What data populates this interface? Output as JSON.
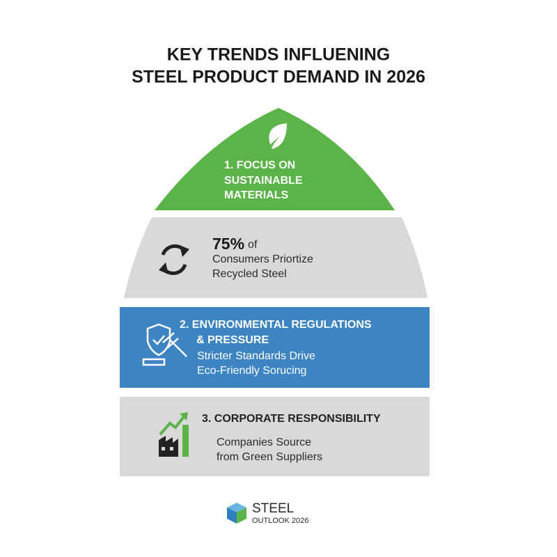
{
  "header": {
    "title": [
      "KEY TRENDS INFLUENING",
      "STEEL PRODUCT DEMAND IN 2026"
    ]
  },
  "tiers": [
    {
      "heading": [
        "1. FOCUS ON",
        "SUSTAINABLE",
        "MATERIALS"
      ]
    },
    {
      "stat": "75%",
      "stat_suffix": "of",
      "text": [
        "Consumers Priortize",
        "Recycled Steel"
      ]
    },
    {
      "heading": [
        "2.  ENVIRONMENTAL REGULATIONS",
        "& PRESSURE"
      ],
      "text": [
        "Stricter Standards Drive",
        "Eco-Friendly Sorucing"
      ]
    },
    {
      "heading": [
        "3.  CORPORATE RESPONSIBILITY"
      ],
      "text": [
        "Companies Source",
        "from Green Suppliers"
      ]
    }
  ],
  "logo": {
    "name": "STEEL",
    "subtitle": "OUTLOOK 2026"
  }
}
